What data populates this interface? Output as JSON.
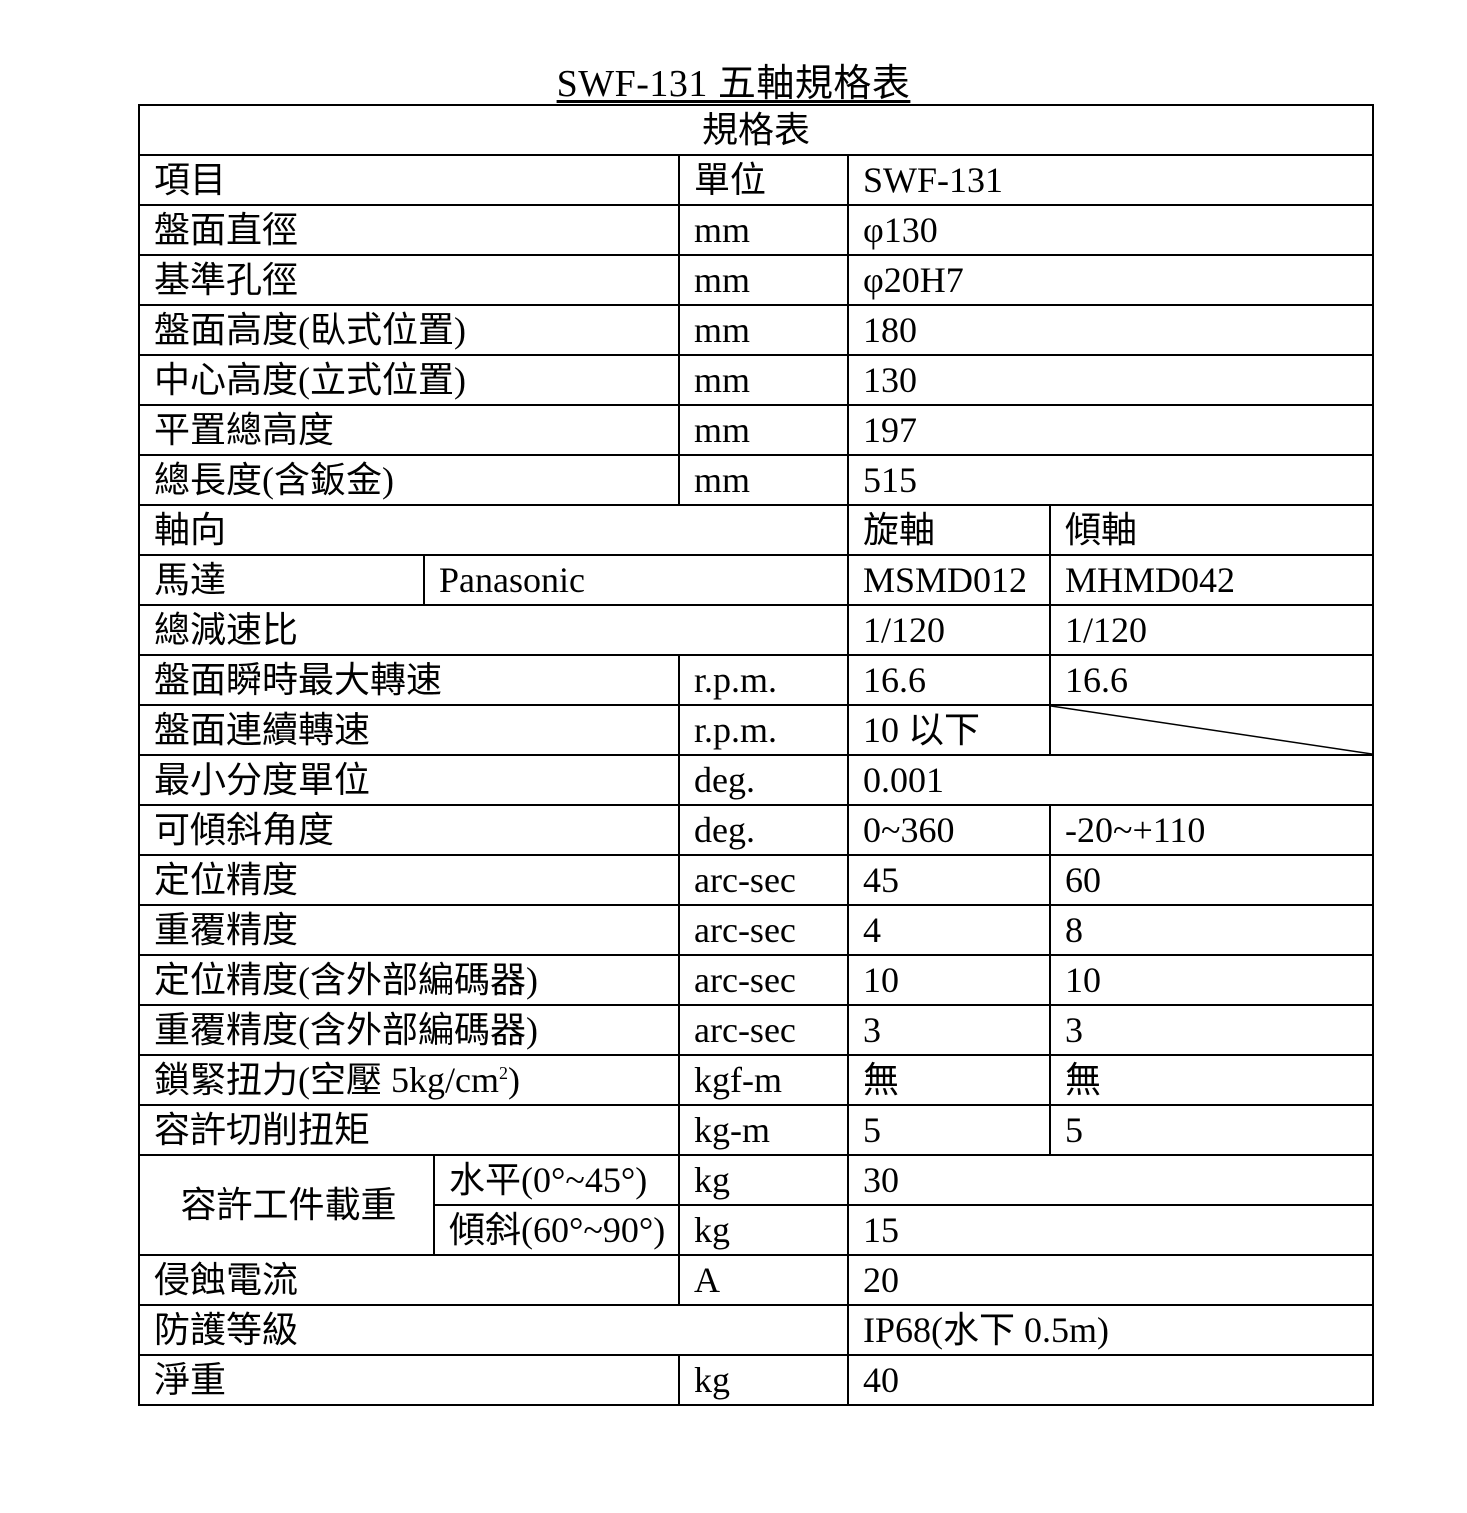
{
  "title": "SWF-131  五軸規格表",
  "table": {
    "caption": "規格表",
    "header": {
      "item": "項目",
      "unit": "單位",
      "model": "SWF-131"
    },
    "rows": [
      {
        "label": "盤面直徑",
        "unit": "mm",
        "value": "φ130"
      },
      {
        "label": "基準孔徑",
        "unit": "mm",
        "value": "φ20H7"
      },
      {
        "label": "盤面高度(臥式位置)",
        "unit": "mm",
        "value": "180"
      },
      {
        "label": "中心高度(立式位置)",
        "unit": "mm",
        "value": "130"
      },
      {
        "label": "平置總高度",
        "unit": "mm",
        "value": "197"
      },
      {
        "label": "總長度(含鈑金)",
        "unit": "mm",
        "value": "515"
      },
      {
        "label": "軸向",
        "rotary": "旋軸",
        "tilt": "傾軸"
      },
      {
        "label": "馬達",
        "brand": "Panasonic",
        "rotary": "MSMD012",
        "tilt": "MHMD042"
      },
      {
        "label": "總減速比",
        "rotary": "1/120",
        "tilt": "1/120"
      },
      {
        "label": "盤面瞬時最大轉速",
        "unit": "r.p.m.",
        "rotary": "16.6",
        "tilt": "16.6"
      },
      {
        "label": "盤面連續轉速",
        "unit": "r.p.m.",
        "rotary": "10 以下"
      },
      {
        "label": "最小分度單位",
        "unit": "deg.",
        "value": "0.001"
      },
      {
        "label": "可傾斜角度",
        "unit": "deg.",
        "rotary": "0~360",
        "tilt": "-20~+110"
      },
      {
        "label": "定位精度",
        "unit": "arc-sec",
        "rotary": "45",
        "tilt": "60"
      },
      {
        "label": "重覆精度",
        "unit": "arc-sec",
        "rotary": "4",
        "tilt": "8"
      },
      {
        "label": "定位精度(含外部編碼器)",
        "unit": "arc-sec",
        "rotary": "10",
        "tilt": "10"
      },
      {
        "label": "重覆精度(含外部編碼器)",
        "unit": "arc-sec",
        "rotary": "3",
        "tilt": "3"
      },
      {
        "label": "鎖緊扭力(空壓 5kg/cm",
        "label_sup": "2",
        "label_end": ")",
        "unit": "kgf-m",
        "rotary": "無",
        "tilt": "無"
      },
      {
        "label": "容許切削扭矩",
        "unit": "kg-m",
        "rotary": "5",
        "tilt": "5"
      },
      {
        "label": "容許工件載重",
        "sub": [
          {
            "label": "水平(0°~45°)",
            "unit": "kg",
            "value": "30"
          },
          {
            "label": "傾斜(60°~90°)",
            "unit": "kg",
            "value": "15"
          }
        ]
      },
      {
        "label": "侵蝕電流",
        "unit": "A",
        "value": "20"
      },
      {
        "label": "防護等級",
        "value": "IP68(水下 0.5m)"
      },
      {
        "label": "淨重",
        "unit": "kg",
        "value": "40"
      }
    ]
  }
}
